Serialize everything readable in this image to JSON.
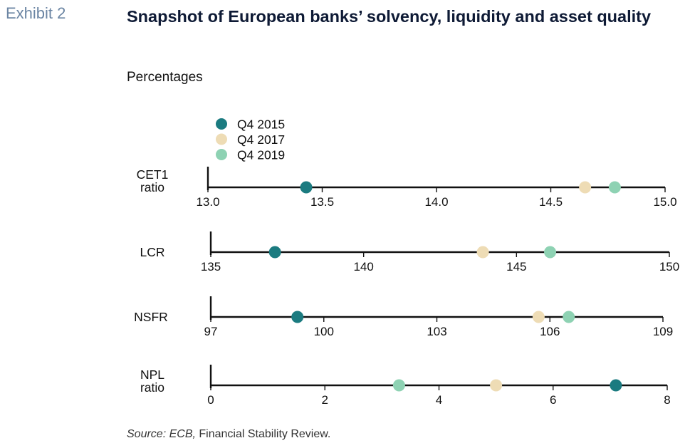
{
  "header": {
    "exhibit_label": "Exhibit 2",
    "title": "Snapshot of European banks’ solvency, liquidity and asset quality",
    "subtitle": "Percentages"
  },
  "footer": {
    "source_label": "Source: ECB,",
    "source_text": " Financial Stability Review."
  },
  "chart_data": {
    "type": "scatter",
    "subtitle": "Percentages",
    "legend": {
      "placement": "top-left",
      "entries": [
        {
          "name": "Q4 2015",
          "color": "#1b7b80"
        },
        {
          "name": "Q4 2017",
          "color": "#eedcb5"
        },
        {
          "name": "Q4 2019",
          "color": "#8ed2b3"
        }
      ]
    },
    "panels": [
      {
        "label_lines": [
          "CET1",
          "ratio"
        ],
        "xlim": [
          13.0,
          15.0
        ],
        "ticks": [
          13.0,
          13.5,
          14.0,
          14.5,
          15.0
        ],
        "tick_labels": [
          "13.0",
          "13.5",
          "14.0",
          "14.5",
          "15.0"
        ],
        "values": {
          "Q4 2015": 13.43,
          "Q4 2017": 14.65,
          "Q4 2019": 14.78
        }
      },
      {
        "label_lines": [
          "LCR"
        ],
        "xlim": [
          135,
          150
        ],
        "ticks": [
          135,
          140,
          145,
          150
        ],
        "tick_labels": [
          "135",
          "140",
          "145",
          "150"
        ],
        "values": {
          "Q4 2015": 137.1,
          "Q4 2017": 143.9,
          "Q4 2019": 146.1
        }
      },
      {
        "label_lines": [
          "NSFR"
        ],
        "xlim": [
          97,
          109
        ],
        "ticks": [
          97,
          100,
          103,
          106,
          109
        ],
        "tick_labels": [
          "97",
          "100",
          "103",
          "106",
          "109"
        ],
        "values": {
          "Q4 2015": 99.3,
          "Q4 2017": 105.7,
          "Q4 2019": 106.5
        }
      },
      {
        "label_lines": [
          "NPL",
          "ratio"
        ],
        "xlim": [
          0,
          8
        ],
        "ticks": [
          0,
          2,
          4,
          6,
          8
        ],
        "tick_labels": [
          "0",
          "2",
          "4",
          "6",
          "8"
        ],
        "values": {
          "Q4 2015": 7.1,
          "Q4 2017": 5.0,
          "Q4 2019": 3.3
        }
      }
    ]
  }
}
